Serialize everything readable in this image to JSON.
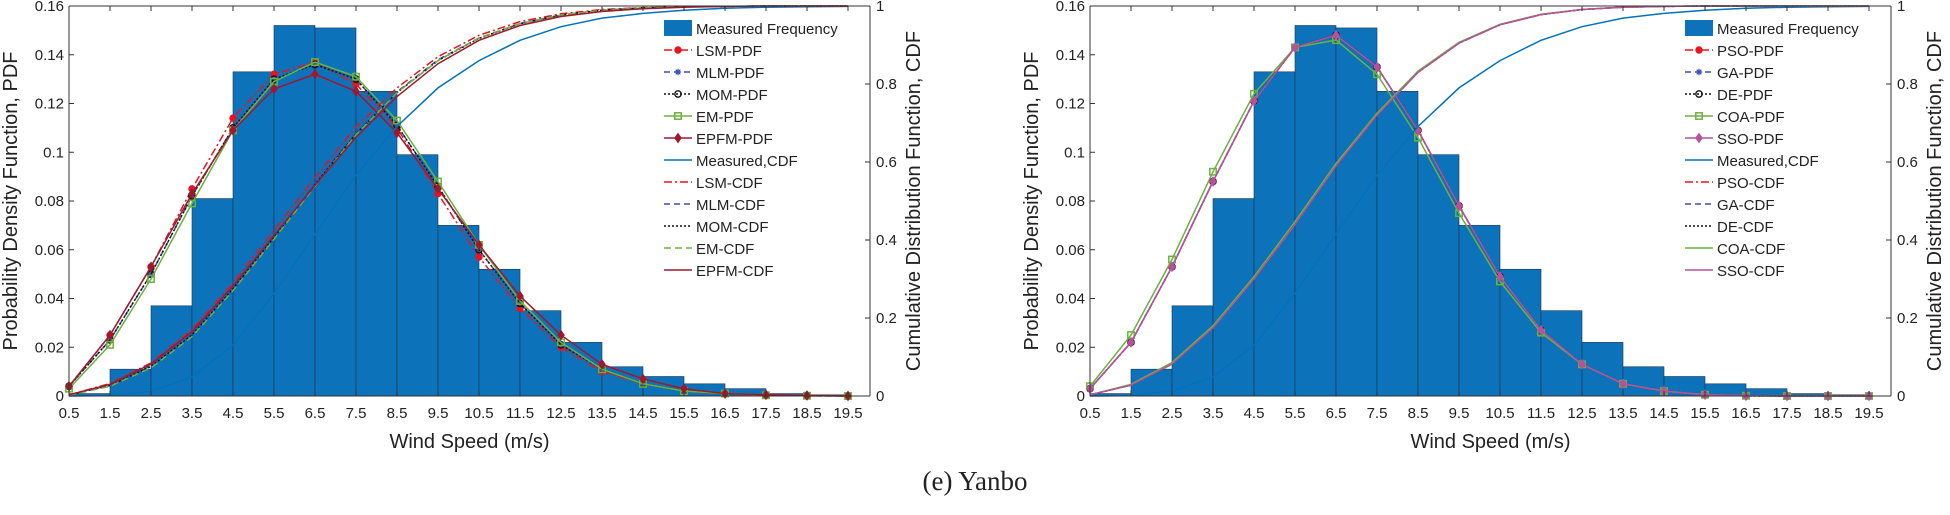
{
  "caption": "(e) Yanbo",
  "colors": {
    "bar": "#0C72BA",
    "measured_cdf": "#0072BD"
  },
  "chart_data": [
    {
      "type": "bar+line",
      "xlabel": "Wind Speed (m/s)",
      "ylabel": "Probability Density Function, PDF",
      "y2label": "Cumulative Distribution Function, CDF",
      "ylim": [
        0,
        0.16
      ],
      "y2lim": [
        0,
        1
      ],
      "xticks": [
        0.5,
        1.5,
        2.5,
        3.5,
        4.5,
        5.5,
        6.5,
        7.5,
        8.5,
        9.5,
        10.5,
        11.5,
        12.5,
        13.5,
        14.5,
        15.5,
        16.5,
        17.5,
        18.5,
        19.5
      ],
      "yticks": [
        0,
        0.02,
        0.04,
        0.06,
        0.08,
        0.1,
        0.12,
        0.14,
        0.16
      ],
      "ytick_labels": [
        "0",
        "0.02",
        "0.04",
        "0.06",
        "0.08",
        "0.1",
        "0.12",
        "0.14",
        "0.16"
      ],
      "y2ticks": [
        0,
        0.2,
        0.4,
        0.6,
        0.8,
        1
      ],
      "y2tick_labels": [
        "0",
        "0.2",
        "0.4",
        "0.6",
        "0.8",
        "1"
      ],
      "legend_position": "top-right",
      "histogram": {
        "name": "Measured Frequency",
        "color": "#0C72BA",
        "values": [
          0.001,
          0.011,
          0.037,
          0.081,
          0.133,
          0.152,
          0.151,
          0.125,
          0.099,
          0.07,
          0.052,
          0.035,
          0.022,
          0.012,
          0.008,
          0.005,
          0.003,
          0.001,
          0.0005
        ]
      },
      "series": [
        {
          "name": "LSM-PDF",
          "axis": "left",
          "color": "#E8141E",
          "dash": "8,3,2,3",
          "marker": "circle",
          "values": [
            0.004,
            0.025,
            0.053,
            0.085,
            0.114,
            0.132,
            0.137,
            0.128,
            0.11,
            0.083,
            0.057,
            0.036,
            0.02,
            0.01,
            0.005,
            0.002,
            0.001,
            0.0003,
            0.0001,
            0
          ]
        },
        {
          "name": "MLM-PDF",
          "axis": "left",
          "color": "#3A4FB0",
          "dash": "6,4",
          "marker": "star",
          "values": [
            0.004,
            0.023,
            0.05,
            0.082,
            0.11,
            0.13,
            0.136,
            0.13,
            0.111,
            0.086,
            0.06,
            0.038,
            0.021,
            0.011,
            0.005,
            0.002,
            0.001,
            0.0003,
            0.0001,
            0
          ]
        },
        {
          "name": "MOM-PDF",
          "axis": "left",
          "color": "#111111",
          "dash": "2,2",
          "marker": "circle-open",
          "values": [
            0.004,
            0.023,
            0.05,
            0.082,
            0.11,
            0.13,
            0.136,
            0.13,
            0.111,
            0.086,
            0.06,
            0.038,
            0.021,
            0.011,
            0.005,
            0.002,
            0.001,
            0.0003,
            0.0001,
            0
          ]
        },
        {
          "name": "EM-PDF",
          "axis": "left",
          "color": "#6AB23C",
          "dash": "",
          "marker": "square",
          "values": [
            0.003,
            0.021,
            0.048,
            0.079,
            0.109,
            0.129,
            0.137,
            0.131,
            0.113,
            0.088,
            0.062,
            0.039,
            0.022,
            0.011,
            0.005,
            0.002,
            0.001,
            0.0003,
            0.0001,
            0
          ]
        },
        {
          "name": "EPFM-PDF",
          "axis": "left",
          "color": "#A0182E",
          "dash": "",
          "marker": "diamond",
          "values": [
            0.004,
            0.025,
            0.053,
            0.083,
            0.109,
            0.126,
            0.132,
            0.125,
            0.108,
            0.085,
            0.062,
            0.041,
            0.025,
            0.013,
            0.007,
            0.003,
            0.001,
            0.0005,
            0.0002,
            0
          ]
        },
        {
          "name": "Measured,CDF",
          "axis": "right",
          "color": "#0072BD",
          "dash": "",
          "marker": "none",
          "values": [
            0,
            0.001,
            0.012,
            0.049,
            0.13,
            0.263,
            0.415,
            0.566,
            0.691,
            0.79,
            0.86,
            0.912,
            0.947,
            0.969,
            0.981,
            0.989,
            0.994,
            0.997,
            0.998,
            0.999
          ]
        },
        {
          "name": "LSM-CDF",
          "axis": "right",
          "color": "#E8141E",
          "dash": "8,3,2,3",
          "marker": "none",
          "values": [
            0.003,
            0.032,
            0.085,
            0.17,
            0.29,
            0.425,
            0.56,
            0.69,
            0.79,
            0.87,
            0.925,
            0.96,
            0.98,
            0.991,
            0.996,
            0.998,
            0.999,
            1,
            1,
            1
          ]
        },
        {
          "name": "MLM-CDF",
          "axis": "right",
          "color": "#3A4FB0",
          "dash": "6,4",
          "marker": "none",
          "values": [
            0.003,
            0.028,
            0.078,
            0.16,
            0.278,
            0.41,
            0.545,
            0.675,
            0.78,
            0.862,
            0.918,
            0.955,
            0.977,
            0.989,
            0.995,
            0.998,
            0.999,
            1,
            1,
            1
          ]
        },
        {
          "name": "MOM-CDF",
          "axis": "right",
          "color": "#111111",
          "dash": "2,2",
          "marker": "none",
          "values": [
            0.003,
            0.027,
            0.076,
            0.157,
            0.275,
            0.407,
            0.542,
            0.672,
            0.778,
            0.86,
            0.917,
            0.955,
            0.977,
            0.989,
            0.995,
            0.998,
            0.999,
            1,
            1,
            1
          ]
        },
        {
          "name": "EM-CDF",
          "axis": "right",
          "color": "#6AB23C",
          "dash": "7,4",
          "marker": "none",
          "values": [
            0.002,
            0.025,
            0.072,
            0.152,
            0.27,
            0.402,
            0.538,
            0.67,
            0.778,
            0.86,
            0.918,
            0.955,
            0.977,
            0.989,
            0.995,
            0.998,
            0.999,
            1,
            1,
            1
          ]
        },
        {
          "name": "EPFM-CDF",
          "axis": "right",
          "color": "#A0182E",
          "dash": "",
          "marker": "none",
          "values": [
            0.003,
            0.03,
            0.082,
            0.165,
            0.282,
            0.412,
            0.54,
            0.663,
            0.768,
            0.852,
            0.912,
            0.95,
            0.973,
            0.986,
            0.993,
            0.997,
            0.999,
            1,
            1,
            1
          ]
        }
      ]
    },
    {
      "type": "bar+line",
      "xlabel": "Wind Speed (m/s)",
      "ylabel": "Probability Density Function, PDF",
      "y2label": "Cumulative Distribution Function, CDF",
      "ylim": [
        0,
        0.16
      ],
      "y2lim": [
        0,
        1
      ],
      "xticks": [
        0.5,
        1.5,
        2.5,
        3.5,
        4.5,
        5.5,
        6.5,
        7.5,
        8.5,
        9.5,
        10.5,
        11.5,
        12.5,
        13.5,
        14.5,
        15.5,
        16.5,
        17.5,
        18.5,
        19.5
      ],
      "yticks": [
        0,
        0.02,
        0.04,
        0.06,
        0.08,
        0.1,
        0.12,
        0.14,
        0.16
      ],
      "ytick_labels": [
        "0",
        "0.02",
        "0.04",
        "0.06",
        "0.08",
        "0.1",
        "0.12",
        "0.14",
        "0.16"
      ],
      "y2ticks": [
        0,
        0.2,
        0.4,
        0.6,
        0.8,
        1
      ],
      "y2tick_labels": [
        "0",
        "0.2",
        "0.4",
        "0.6",
        "0.8",
        "1"
      ],
      "legend_position": "top-right",
      "histogram": {
        "name": "Measured Frequency",
        "color": "#0C72BA",
        "values": [
          0.001,
          0.011,
          0.037,
          0.081,
          0.133,
          0.152,
          0.151,
          0.125,
          0.099,
          0.07,
          0.052,
          0.035,
          0.022,
          0.012,
          0.008,
          0.005,
          0.003,
          0.001,
          0.0005
        ]
      },
      "series": [
        {
          "name": "PSO-PDF",
          "axis": "left",
          "color": "#E8141E",
          "dash": "8,3,2,3",
          "marker": "circle",
          "values": [
            0.003,
            0.022,
            0.053,
            0.088,
            0.121,
            0.143,
            0.148,
            0.135,
            0.109,
            0.078,
            0.049,
            0.027,
            0.013,
            0.005,
            0.002,
            0.0005,
            0.0001,
            0,
            0,
            0
          ]
        },
        {
          "name": "GA-PDF",
          "axis": "left",
          "color": "#3A4FB0",
          "dash": "6,4",
          "marker": "star",
          "values": [
            0.003,
            0.022,
            0.053,
            0.088,
            0.121,
            0.143,
            0.148,
            0.135,
            0.109,
            0.078,
            0.049,
            0.027,
            0.013,
            0.005,
            0.002,
            0.0005,
            0.0001,
            0,
            0,
            0
          ]
        },
        {
          "name": "DE-PDF",
          "axis": "left",
          "color": "#111111",
          "dash": "2,2",
          "marker": "circle-open",
          "values": [
            0.003,
            0.022,
            0.053,
            0.088,
            0.121,
            0.143,
            0.148,
            0.135,
            0.109,
            0.078,
            0.049,
            0.027,
            0.013,
            0.005,
            0.002,
            0.0005,
            0.0001,
            0,
            0,
            0
          ]
        },
        {
          "name": "COA-PDF",
          "axis": "left",
          "color": "#6AB23C",
          "dash": "",
          "marker": "square",
          "values": [
            0.004,
            0.025,
            0.056,
            0.092,
            0.124,
            0.143,
            0.146,
            0.132,
            0.106,
            0.075,
            0.047,
            0.026,
            0.013,
            0.005,
            0.002,
            0.0005,
            0.0001,
            0,
            0,
            0
          ]
        },
        {
          "name": "SSO-PDF",
          "axis": "left",
          "color": "#B8509E",
          "dash": "",
          "marker": "diamond",
          "values": [
            0.003,
            0.022,
            0.053,
            0.088,
            0.121,
            0.143,
            0.148,
            0.135,
            0.109,
            0.078,
            0.049,
            0.027,
            0.013,
            0.005,
            0.002,
            0.0005,
            0.0001,
            0,
            0,
            0
          ]
        },
        {
          "name": "Measured,CDF",
          "axis": "right",
          "color": "#0072BD",
          "dash": "",
          "marker": "none",
          "values": [
            0,
            0.001,
            0.012,
            0.049,
            0.13,
            0.263,
            0.415,
            0.566,
            0.691,
            0.79,
            0.86,
            0.912,
            0.947,
            0.969,
            0.981,
            0.989,
            0.994,
            0.997,
            0.998,
            0.999
          ]
        },
        {
          "name": "PSO-CDF",
          "axis": "right",
          "color": "#E8141E",
          "dash": "8,3,2,3",
          "marker": "none",
          "values": [
            0.003,
            0.028,
            0.082,
            0.175,
            0.3,
            0.44,
            0.59,
            0.72,
            0.83,
            0.905,
            0.952,
            0.978,
            0.991,
            0.997,
            0.999,
            1,
            1,
            1,
            1,
            1
          ]
        },
        {
          "name": "GA-CDF",
          "axis": "right",
          "color": "#3A4FB0",
          "dash": "6,4",
          "marker": "none",
          "values": [
            0.003,
            0.028,
            0.082,
            0.175,
            0.3,
            0.44,
            0.59,
            0.72,
            0.83,
            0.905,
            0.952,
            0.978,
            0.991,
            0.997,
            0.999,
            1,
            1,
            1,
            1,
            1
          ]
        },
        {
          "name": "DE-CDF",
          "axis": "right",
          "color": "#111111",
          "dash": "2,2",
          "marker": "none",
          "values": [
            0.003,
            0.028,
            0.082,
            0.175,
            0.3,
            0.44,
            0.59,
            0.72,
            0.83,
            0.905,
            0.952,
            0.978,
            0.991,
            0.997,
            0.999,
            1,
            1,
            1,
            1,
            1
          ]
        },
        {
          "name": "COA-CDF",
          "axis": "right",
          "color": "#6AB23C",
          "dash": "",
          "marker": "none",
          "values": [
            0.003,
            0.03,
            0.086,
            0.18,
            0.306,
            0.447,
            0.596,
            0.725,
            0.833,
            0.907,
            0.953,
            0.979,
            0.991,
            0.997,
            0.999,
            1,
            1,
            1,
            1,
            1
          ]
        },
        {
          "name": "SSO-CDF",
          "axis": "right",
          "color": "#B8509E",
          "dash": "",
          "marker": "none",
          "values": [
            0.003,
            0.028,
            0.082,
            0.175,
            0.3,
            0.44,
            0.59,
            0.72,
            0.83,
            0.905,
            0.952,
            0.978,
            0.991,
            0.997,
            0.999,
            1,
            1,
            1,
            1,
            1
          ]
        }
      ]
    }
  ]
}
